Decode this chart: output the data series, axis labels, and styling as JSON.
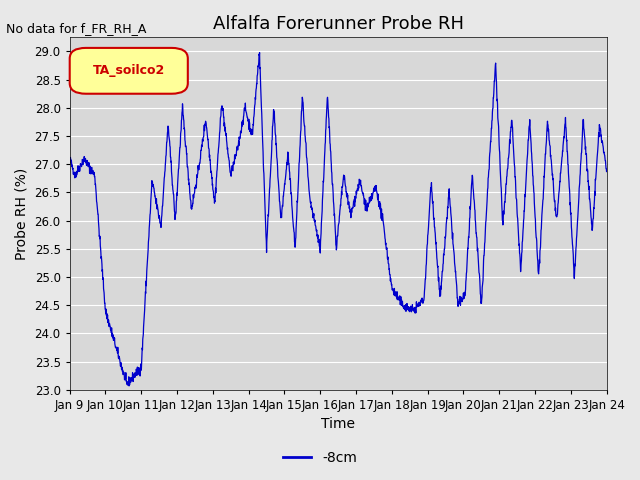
{
  "title": "Alfalfa Forerunner Probe RH",
  "no_data_label": "No data for f_FR_RH_A",
  "legend_label": "TA_soilco2",
  "series_label": "-8cm",
  "ylabel": "Probe RH (%)",
  "xlabel": "Time",
  "ylim": [
    23.0,
    29.25
  ],
  "yticks": [
    23.0,
    23.5,
    24.0,
    24.5,
    25.0,
    25.5,
    26.0,
    26.5,
    27.0,
    27.5,
    28.0,
    28.5,
    29.0
  ],
  "xtick_labels": [
    "Jan 9",
    "Jan 10",
    "Jan 11",
    "Jan 12",
    "Jan 13",
    "Jan 14",
    "Jan 15",
    "Jan 16",
    "Jan 17",
    "Jan 18",
    "Jan 19",
    "Jan 20",
    "Jan 21",
    "Jan 22",
    "Jan 23",
    "Jan 24"
  ],
  "line_color": "#0000cc",
  "fig_bg_color": "#e8e8e8",
  "plot_bg_color": "#d8d8d8",
  "title_fontsize": 13,
  "label_fontsize": 10,
  "tick_fontsize": 8.5,
  "nodata_fontsize": 9,
  "legend_box_facecolor": "#ffff99",
  "legend_box_edgecolor": "#cc0000",
  "legend_text_color": "#cc0000",
  "grid_color": "#ffffff",
  "legend_series_fontsize": 10
}
